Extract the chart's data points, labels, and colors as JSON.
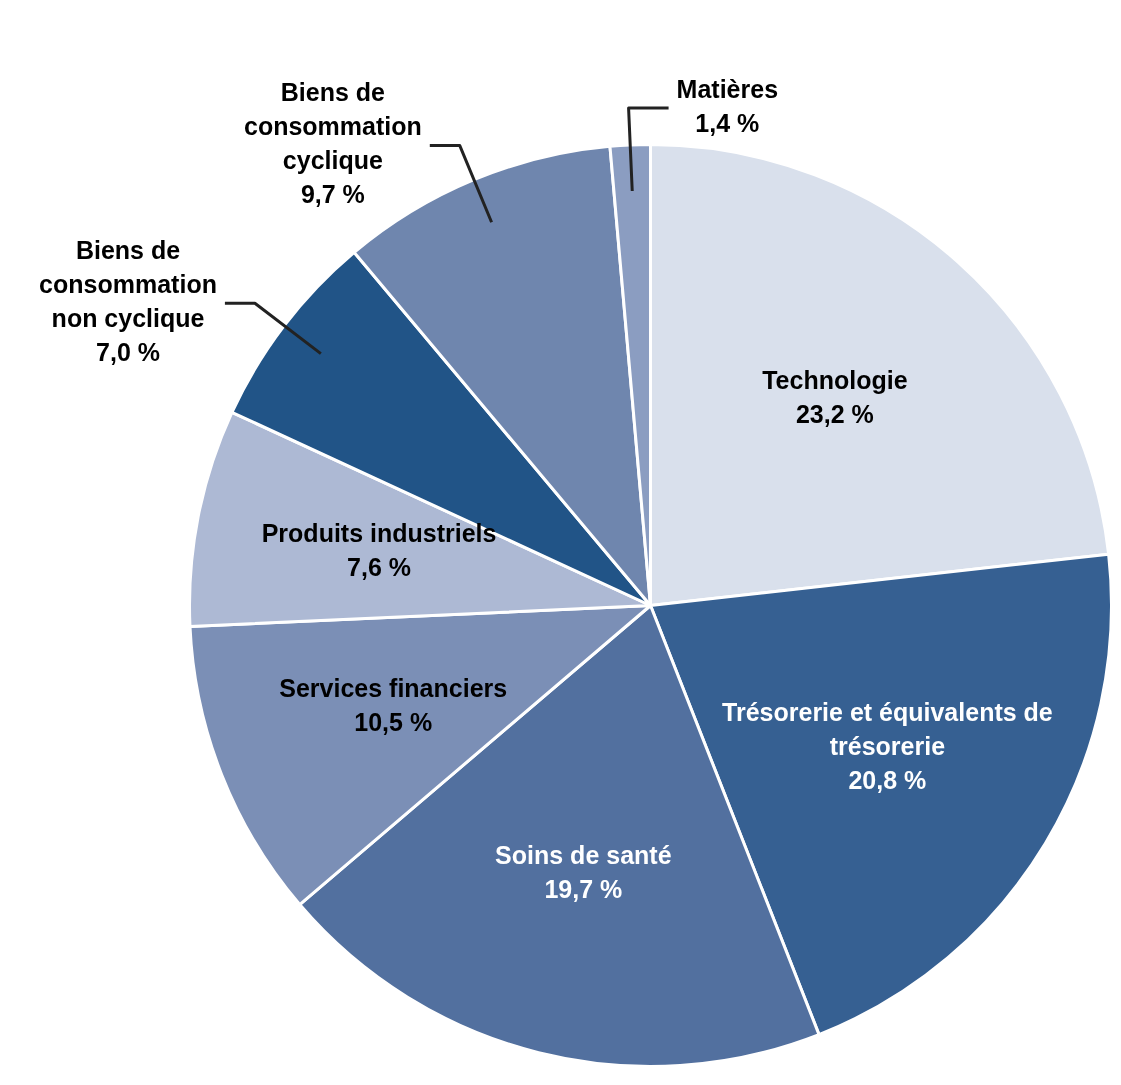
{
  "chart_data": {
    "type": "pie",
    "categories": [
      "Technologie",
      "Trésorerie et équivalents de trésorerie",
      "Soins de santé",
      "Services financiers",
      "Produits industriels",
      "Biens de consommation non cyclique",
      "Biens de consommation cyclique",
      "Matières"
    ],
    "values": [
      23.2,
      20.8,
      19.7,
      10.5,
      7.6,
      7.0,
      9.7,
      1.4
    ],
    "value_labels": [
      "23,2 %",
      "20,8 %",
      "19,7 %",
      "10,5 %",
      "7,6 %",
      "7,0 %",
      "9,7 %",
      "1,4 %"
    ],
    "colors": [
      "#d9e0ec",
      "#366092",
      "#52709f",
      "#7b8fb6",
      "#adb9d4",
      "#215487",
      "#6f86ae",
      "#8b9dc1"
    ],
    "legend": false
  }
}
